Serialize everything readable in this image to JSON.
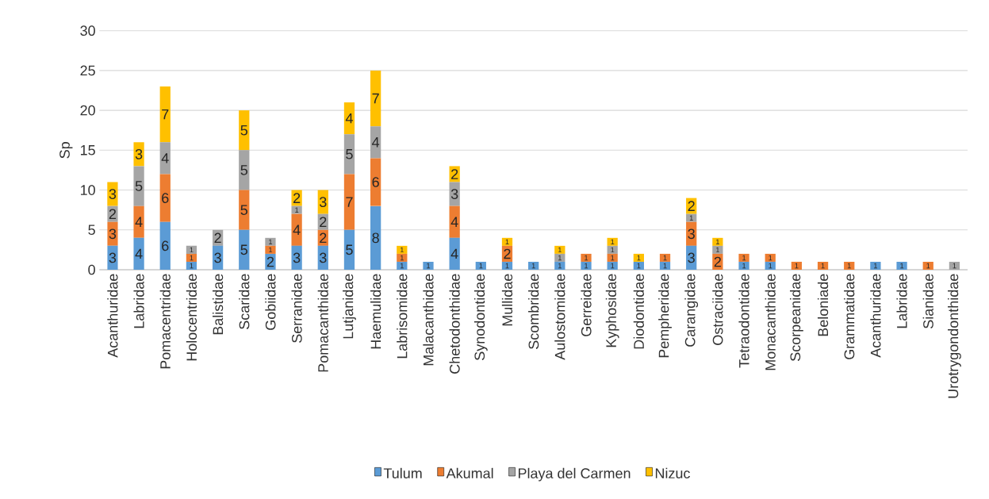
{
  "chart_data": {
    "type": "bar",
    "stacked": true,
    "ylabel": "Sp",
    "categories": [
      "Acanthuridae",
      "Labridae",
      "Pomacentridae",
      "Holocentridae",
      "Balistidae",
      "Scaridae",
      "Gobiidae",
      "Serranidae",
      "Pomacanthidae",
      "Lutjanidae",
      "Haemulidae",
      "Labrisomidae",
      "Malacanthidae",
      "Chetodonthidae",
      "Synodontidae",
      "Mullidae",
      "Scombridae",
      "Aulostomidae",
      "Gerreidae",
      "Kyphosidae",
      "Diodontidae",
      "Pempheridae",
      "Carangidae",
      "Ostraciidae",
      "Tetraodontidae",
      "Monacanthidae",
      "Scorpeanidae",
      "Beloniade",
      "Grammatidae",
      "Acanthuridae",
      "Labridae",
      "Sianidae",
      "Urotrygondonthidae"
    ],
    "series": [
      {
        "name": "Tulum",
        "color": "#5b9bd5",
        "values": [
          3,
          4,
          6,
          1,
          3,
          5,
          2,
          3,
          3,
          5,
          8,
          1,
          1,
          4,
          1,
          1,
          1,
          1,
          1,
          1,
          1,
          1,
          3,
          null,
          1,
          1,
          null,
          null,
          null,
          1,
          1,
          null,
          null
        ]
      },
      {
        "name": "Akumal",
        "color": "#ed7d31",
        "values": [
          3,
          4,
          6,
          1,
          null,
          5,
          1,
          4,
          2,
          7,
          6,
          1,
          null,
          4,
          null,
          2,
          null,
          null,
          1,
          1,
          null,
          1,
          3,
          2,
          1,
          1,
          1,
          1,
          1,
          null,
          null,
          1,
          null
        ]
      },
      {
        "name": "Playa del Carmen",
        "color": "#a5a5a5",
        "values": [
          2,
          5,
          4,
          1,
          2,
          5,
          1,
          1,
          2,
          5,
          4,
          null,
          null,
          3,
          null,
          null,
          null,
          1,
          null,
          1,
          null,
          null,
          1,
          1,
          null,
          null,
          null,
          null,
          null,
          null,
          null,
          null,
          1
        ]
      },
      {
        "name": "Nizuc",
        "color": "#ffc000",
        "values": [
          3,
          3,
          7,
          null,
          null,
          5,
          null,
          2,
          3,
          4,
          7,
          1,
          null,
          2,
          null,
          1,
          null,
          1,
          null,
          1,
          1,
          null,
          2,
          1,
          null,
          null,
          null,
          null,
          null,
          null,
          null,
          null,
          null
        ]
      }
    ],
    "ylim": [
      0,
      30
    ],
    "yticks": [
      0,
      5,
      10,
      15,
      20,
      25,
      30
    ],
    "grid": "y",
    "legend": "bottom",
    "data_labels": true
  }
}
